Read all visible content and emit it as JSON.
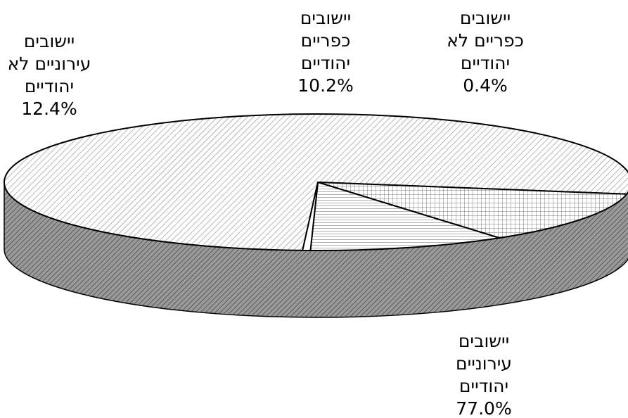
{
  "chart_data": {
    "type": "pie",
    "style": "3d-exploded-off, hatched fills, black outlines",
    "slices": [
      {
        "lines": [
          "יישובים",
          "עירוניים",
          "יהודיים"
        ],
        "value_label": "77.0%",
        "value": 77.0,
        "fill": "diag-fine"
      },
      {
        "lines": [
          "יישובים",
          "עירוניים לא",
          "יהודיים"
        ],
        "value_label": "12.4%",
        "value": 12.4,
        "fill": "grid"
      },
      {
        "lines": [
          "יישובים",
          "כפריים",
          "יהודיים"
        ],
        "value_label": "10.2%",
        "value": 10.2,
        "fill": "horizontal"
      },
      {
        "lines": [
          "יישובים",
          "כפריים לא",
          "יהודיים"
        ],
        "value_label": "0.4%",
        "value": 0.4,
        "fill": "plain"
      }
    ],
    "colors": {
      "outline": "#000000",
      "hatch": "#777777",
      "side": "#6e6e6e",
      "background": "#ffffff"
    }
  }
}
